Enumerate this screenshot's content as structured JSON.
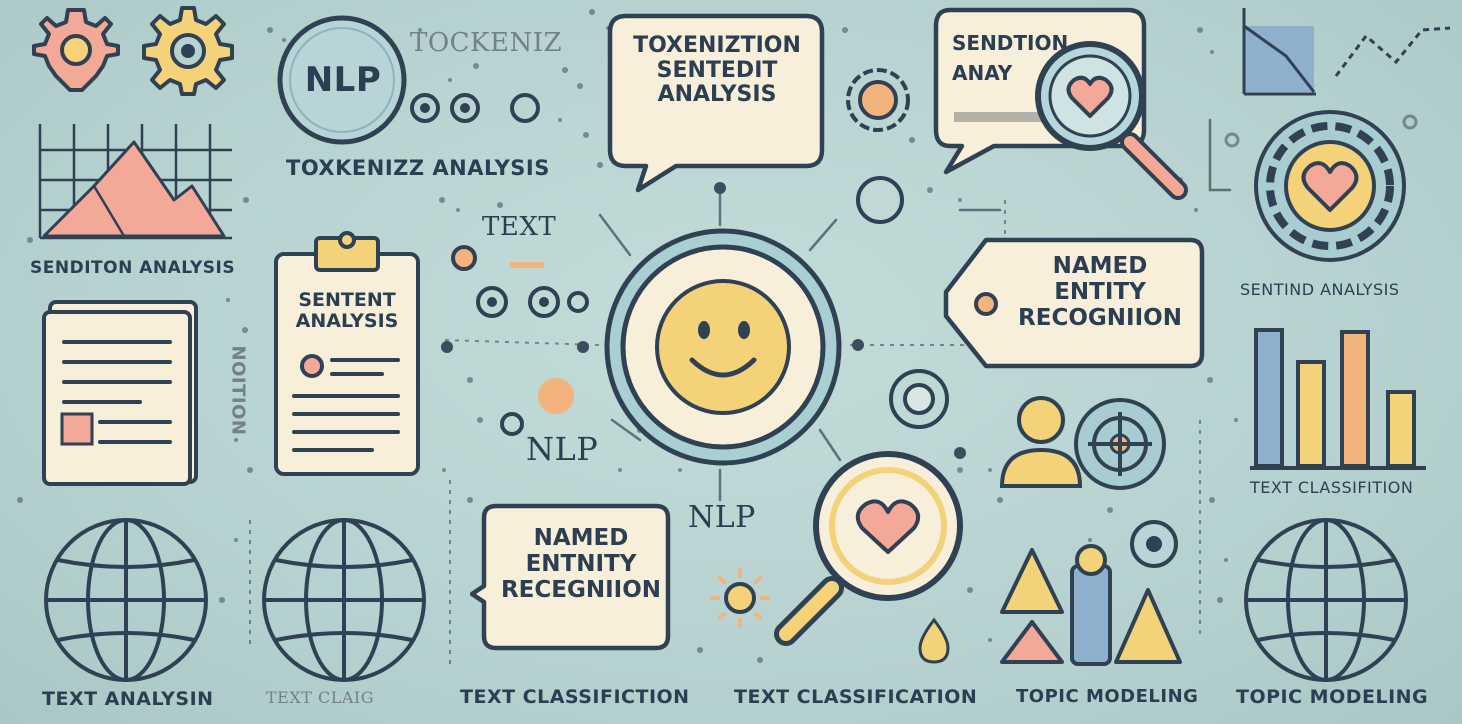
{
  "colors": {
    "background": "#b7d3d1",
    "outline": "#2f4152",
    "cream": "#f7efd9",
    "pink": "#f3a898",
    "yellow": "#f4d27a",
    "blue": "#8fb0cd",
    "teal": "#9ec6cd"
  },
  "labels": {
    "tokenize_faded": "TOCKENIZ",
    "toxkenizz": "TOXKENIZZ ANALYSIS",
    "senditon": "SENDITON ANALYSIS",
    "text_mid": "TEXT",
    "vertical": "NOITION",
    "nlp_1": "NLP",
    "nlp_2": "NLP",
    "sentind": "SENTIND ANALYSIS",
    "text_class_right": "TEXT CLASSIFITION",
    "bottom_1": "TEXT ANALYSIN",
    "bottom_2": "TEXT CLAIG",
    "bottom_3": "TEXT CLASSIFICTION",
    "bottom_4": "TEXT CLASSIFICATION",
    "bottom_5": "TOPIC MODELING",
    "bottom_6": "TOPIC MODELING"
  },
  "badges": {
    "nlp": "NLP"
  },
  "bubbles": {
    "toxenization": [
      "TOXENIZTION",
      "SENTEDIT",
      "ANALYSIS"
    ],
    "sendtion": [
      "SENDTION",
      "ANAY"
    ],
    "named_top": [
      "NAMED",
      "ENTITY",
      "RECOGNIION"
    ],
    "named_bottom": [
      "NAMED",
      "ENTNITY",
      "RECEGNIION"
    ]
  },
  "clipboard": [
    "SENTENT",
    "ANALYSIS"
  ],
  "icons": {
    "gear_pink": "gear-icon",
    "gear_yellow": "gear-icon",
    "mountain_chart": "mountain-chart-icon",
    "document": "document-icon",
    "globe": "globe-icon",
    "smiley": "smiley-face-icon",
    "magnifier_heart": "magnifier-heart-icon",
    "heart_badge": "heart-badge-icon",
    "user": "user-icon",
    "target": "target-icon",
    "bar_chart": "bar-chart-icon",
    "line_chart": "line-chart-icon",
    "shapes": "shapes-icon"
  }
}
